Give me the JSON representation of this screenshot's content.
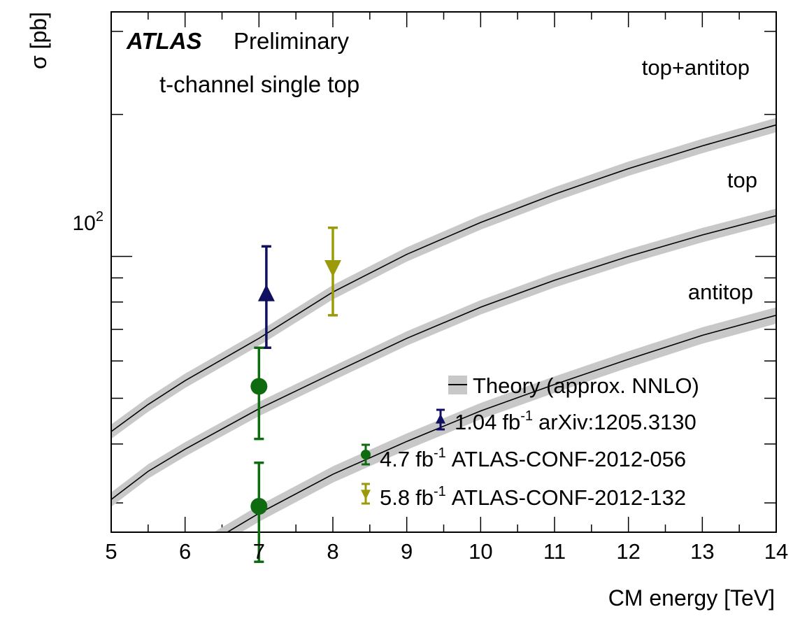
{
  "chart_data": {
    "type": "line",
    "title": "",
    "xlabel": "CM energy [TeV]",
    "ylabel": "σ [pb]",
    "xlim": [
      5,
      14
    ],
    "ylim": [
      26,
      330
    ],
    "yscale": "log",
    "grid": false,
    "legend_placement": "bottom-right",
    "annotations": {
      "experiment": "ATLAS",
      "status": "Preliminary",
      "process": "t-channel single top"
    },
    "x_ticks": [
      "5",
      "6",
      "7",
      "8",
      "9",
      "10",
      "11",
      "12",
      "13",
      "14"
    ],
    "y_tick_label": {
      "base": "10",
      "exp": "2",
      "value": 100
    },
    "theory": {
      "x": [
        5,
        5.5,
        6,
        7,
        8,
        9,
        10,
        11,
        12,
        13,
        14
      ],
      "series": [
        {
          "name": "top+antitop",
          "values": [
            42.5,
            48.5,
            54.5,
            67,
            84,
            101,
            118,
            135.5,
            153.5,
            171.5,
            190
          ],
          "band": 0.035
        },
        {
          "name": "top",
          "values": [
            30.5,
            35,
            39,
            47.5,
            56.5,
            67,
            78,
            89,
            100,
            111,
            122
          ],
          "band": 0.035
        },
        {
          "name": "antitop",
          "values": [
            15.5,
            19,
            23,
            28.5,
            34.5,
            40.5,
            47,
            53.5,
            60.5,
            68,
            75
          ],
          "band": 0.04
        }
      ]
    },
    "measurements": [
      {
        "label_lumi": "1.04",
        "label_ref": "arXiv:1205.3130",
        "marker": "triangle-up",
        "color": "#101060",
        "points": [
          {
            "x": 7.1,
            "y": 83,
            "lo": 64,
            "hi": 105
          }
        ]
      },
      {
        "label_lumi": "4.7",
        "label_ref": "ATLAS-CONF-2012-056",
        "marker": "circle",
        "color": "#0f6b0f",
        "points": [
          {
            "x": 7,
            "y": 53,
            "lo": 41,
            "hi": 64
          },
          {
            "x": 7,
            "y": 29.5,
            "lo": 22.5,
            "hi": 36.5
          }
        ]
      },
      {
        "label_lumi": "5.8",
        "label_ref": "ATLAS-CONF-2012-132",
        "marker": "triangle-down",
        "color": "#9a9a0a",
        "points": [
          {
            "x": 8,
            "y": 95,
            "lo": 75,
            "hi": 115
          }
        ]
      }
    ],
    "legend": {
      "theory_label": "Theory (approx. NNLO)",
      "lumi_unit": "fb",
      "lumi_exp": "-1"
    },
    "colors": {
      "band": "#c8c8c8",
      "line": "#000000"
    }
  }
}
